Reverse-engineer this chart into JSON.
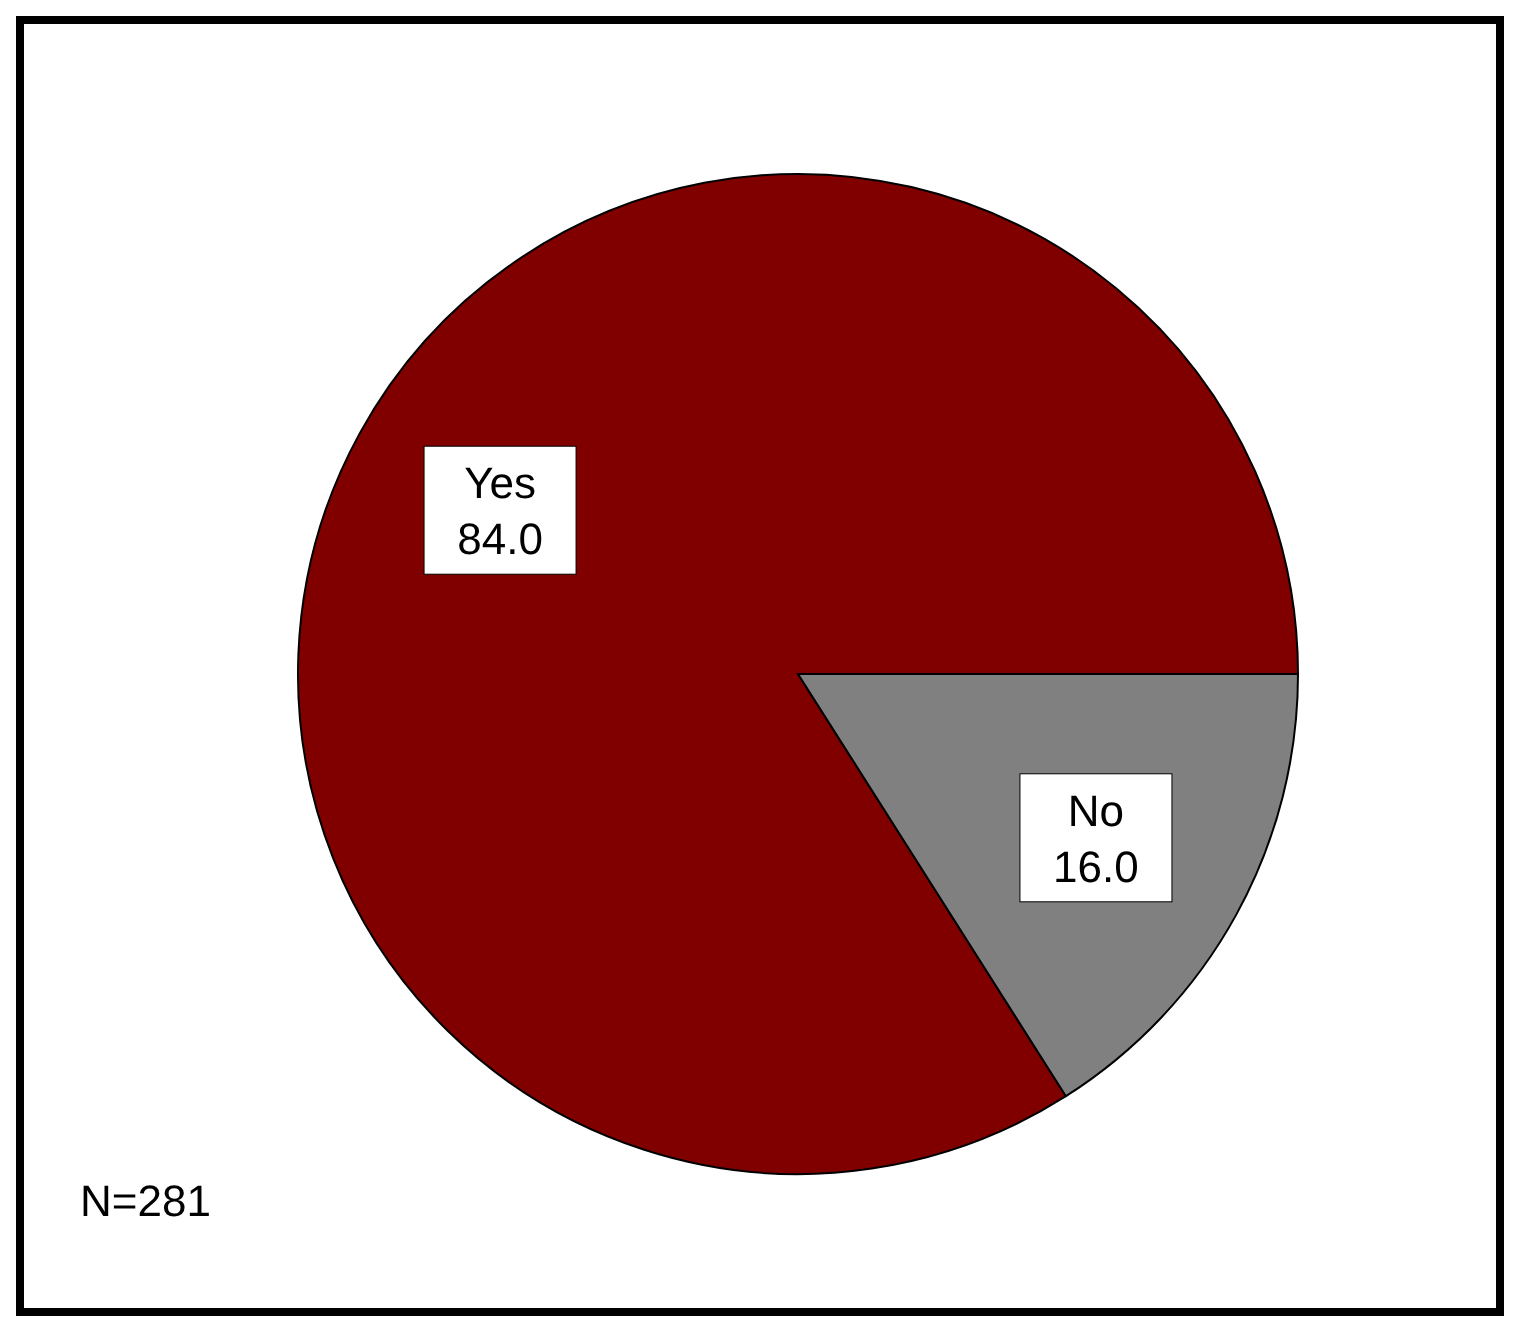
{
  "chart_data": {
    "type": "pie",
    "categories": [
      "Yes",
      "No"
    ],
    "values": [
      84.0,
      16.0
    ],
    "value_labels": [
      "84.0",
      "16.0"
    ],
    "colors": [
      "#800000",
      "#808080"
    ],
    "annotations": [
      "N=281"
    ]
  }
}
